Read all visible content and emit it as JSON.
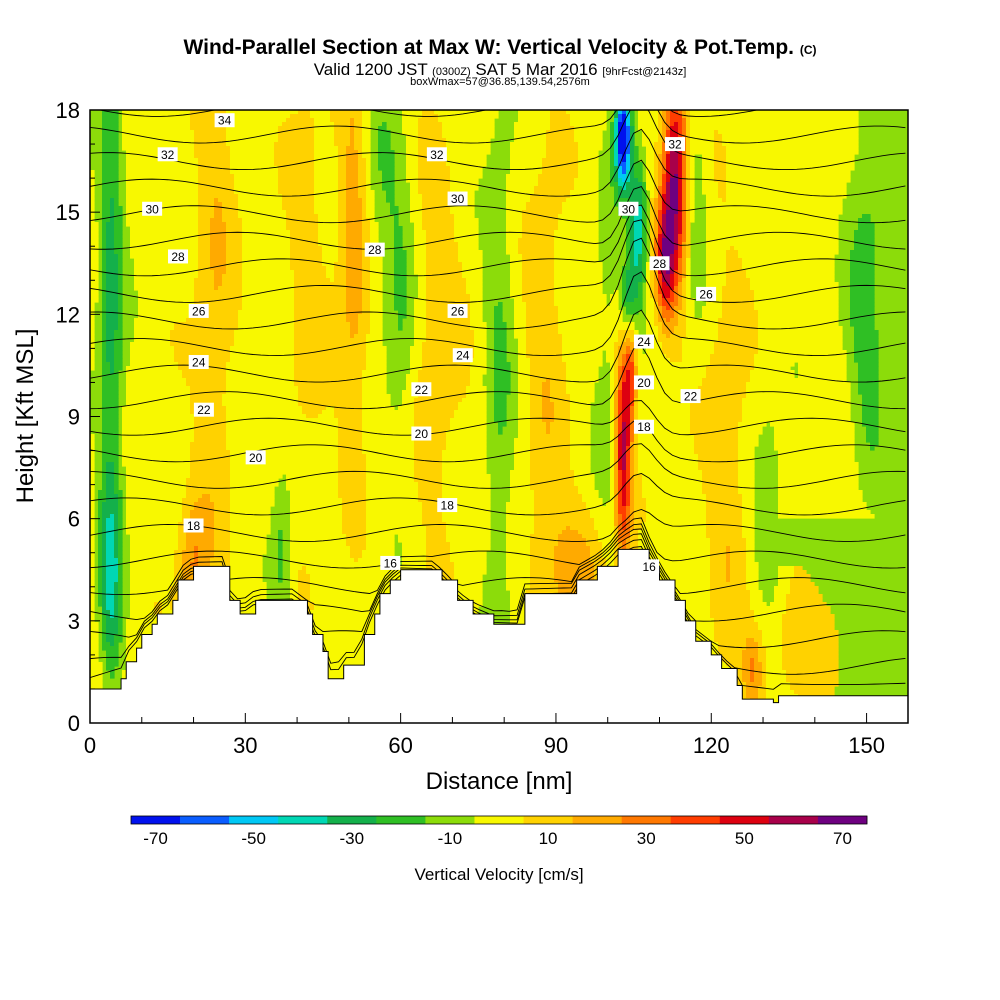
{
  "header": {
    "title_main": "Wind-Parallel Section at Max W: Vertical Velocity & Pot.Temp.",
    "title_mark": "(C)",
    "valid_a": "Valid 1200 JST",
    "valid_b": "(0300Z)",
    "valid_c": "SAT 5 Mar 2016",
    "valid_d": "[9hrFcst@2143z]",
    "box_info": "boxWmax=57@36.85,139.54,2576m"
  },
  "colors": {
    "bins": [
      "#0011ee",
      "#0a5dff",
      "#00c8f5",
      "#00d7b4",
      "#14b04b",
      "#2fbf24",
      "#8cdc0a",
      "#f8f800",
      "#ffd200",
      "#ffaa00",
      "#ff7800",
      "#ff3d00",
      "#dd0010",
      "#a8004a",
      "#6e0080"
    ],
    "background_green": "#8cdc0a",
    "contour_color": "#000000"
  },
  "chart_data": {
    "type": "heatmap",
    "xlabel": "Distance [nm]",
    "ylabel": "Height [Kft MSL]",
    "xlim": [
      0,
      158
    ],
    "ylim": [
      0,
      18
    ],
    "xticks": [
      0,
      30,
      60,
      90,
      120,
      150
    ],
    "yticks": [
      0,
      3,
      6,
      9,
      12,
      15,
      18
    ],
    "colorbar": {
      "label": "Vertical Velocity [cm/s]",
      "tick_labels": [
        "-70",
        "-50",
        "-30",
        "-10",
        "10",
        "30",
        "50",
        "70"
      ],
      "tick_values": [
        -70,
        -50,
        -30,
        -10,
        10,
        30,
        50,
        70
      ],
      "bounds": [
        -75,
        -65,
        -55,
        -45,
        -35,
        -25,
        -15,
        -5,
        5,
        15,
        25,
        35,
        45,
        55,
        65,
        75
      ]
    },
    "terrain_profile": [
      [
        0,
        1.0
      ],
      [
        6,
        1.3
      ],
      [
        7,
        1.8
      ],
      [
        9,
        2.2
      ],
      [
        10,
        2.6
      ],
      [
        12,
        2.9
      ],
      [
        13,
        3.2
      ],
      [
        16,
        3.6
      ],
      [
        17,
        4.2
      ],
      [
        20,
        4.6
      ],
      [
        26,
        4.6
      ],
      [
        27,
        3.6
      ],
      [
        29,
        3.2
      ],
      [
        32,
        3.6
      ],
      [
        39,
        3.6
      ],
      [
        42,
        3.2
      ],
      [
        43,
        2.6
      ],
      [
        45,
        2.1
      ],
      [
        46,
        1.3
      ],
      [
        48,
        1.3
      ],
      [
        49,
        1.7
      ],
      [
        52,
        1.7
      ],
      [
        53,
        2.6
      ],
      [
        55,
        3.2
      ],
      [
        56,
        3.8
      ],
      [
        58,
        4.2
      ],
      [
        60,
        4.5
      ],
      [
        66,
        4.5
      ],
      [
        68,
        4.2
      ],
      [
        71,
        3.6
      ],
      [
        74,
        3.2
      ],
      [
        78,
        2.9
      ],
      [
        83,
        2.9
      ],
      [
        84,
        3.8
      ],
      [
        93,
        3.8
      ],
      [
        94,
        4.2
      ],
      [
        98,
        4.6
      ],
      [
        102,
        5.1
      ],
      [
        107,
        5.1
      ],
      [
        108,
        4.6
      ],
      [
        110,
        4.2
      ],
      [
        113,
        3.6
      ],
      [
        115,
        3.0
      ],
      [
        117,
        2.4
      ],
      [
        120,
        2.0
      ],
      [
        122,
        1.6
      ],
      [
        125,
        1.1
      ],
      [
        126,
        0.7
      ],
      [
        132,
        0.6
      ],
      [
        133,
        0.8
      ],
      [
        148,
        0.8
      ],
      [
        158,
        0.8
      ]
    ],
    "w_features": [
      {
        "x": 4,
        "z": 12,
        "sx": 2.5,
        "sz": 9,
        "w": -28
      },
      {
        "x": 4,
        "z": 4,
        "sx": 2,
        "sz": 3,
        "w": -25
      },
      {
        "x": 24,
        "z": 13,
        "sx": 4,
        "sz": 9,
        "w": 14
      },
      {
        "x": 20,
        "z": 4.5,
        "sx": 3,
        "sz": 2,
        "w": 24
      },
      {
        "x": 42,
        "z": 13,
        "sx": 4,
        "sz": 7,
        "w": 10
      },
      {
        "x": 37,
        "z": 5,
        "sx": 2,
        "sz": 2.5,
        "w": -18
      },
      {
        "x": 51,
        "z": 14,
        "sx": 3,
        "sz": 6,
        "w": 22
      },
      {
        "x": 60,
        "z": 12,
        "sx": 3,
        "sz": 4,
        "w": -16
      },
      {
        "x": 67,
        "z": 11,
        "sx": 5,
        "sz": 6,
        "w": 12
      },
      {
        "x": 56,
        "z": 16,
        "sx": 4,
        "sz": 3,
        "w": -14
      },
      {
        "x": 79,
        "z": 10,
        "sx": 3,
        "sz": 9,
        "w": -15
      },
      {
        "x": 88,
        "z": 11,
        "sx": 4,
        "sz": 7,
        "w": 12
      },
      {
        "x": 93,
        "z": 4.5,
        "sx": 7,
        "sz": 2,
        "w": 18
      },
      {
        "x": 100,
        "z": 11,
        "sx": 3,
        "sz": 6,
        "w": -10
      },
      {
        "x": 103,
        "z": 8,
        "sx": 1.6,
        "sz": 3.3,
        "w": 58
      },
      {
        "x": 104.5,
        "z": 10.5,
        "sx": 1.2,
        "sz": 1.6,
        "w": 35
      },
      {
        "x": 113,
        "z": 16,
        "sx": 2.4,
        "sz": 3.2,
        "w": 66
      },
      {
        "x": 111,
        "z": 13.5,
        "sx": 1.8,
        "sz": 1.8,
        "w": 45
      },
      {
        "x": 103,
        "z": 17.2,
        "sx": 1.6,
        "sz": 1.5,
        "w": -80
      },
      {
        "x": 106,
        "z": 14.5,
        "sx": 1.6,
        "sz": 2,
        "w": -40
      },
      {
        "x": 104,
        "z": 12.3,
        "sx": 1.6,
        "sz": 1.4,
        "w": -35
      },
      {
        "x": 117,
        "z": 15,
        "sx": 2,
        "sz": 3,
        "w": -14
      },
      {
        "x": 123,
        "z": 7.5,
        "sx": 4,
        "sz": 6,
        "w": 14
      },
      {
        "x": 131,
        "z": 6,
        "sx": 3,
        "sz": 3,
        "w": -15
      },
      {
        "x": 136,
        "z": 2.5,
        "sx": 6,
        "sz": 1.8,
        "w": 14
      },
      {
        "x": 128,
        "z": 1.5,
        "sx": 2,
        "sz": 1.2,
        "w": 24
      },
      {
        "x": 150,
        "z": 12,
        "sx": 4,
        "sz": 7,
        "w": -20
      },
      {
        "x": 147,
        "z": 5,
        "sx": 5,
        "sz": 3,
        "w": 8
      }
    ],
    "theta_contour_labels": [
      {
        "text": "34",
        "x": 26,
        "z": 17.7
      },
      {
        "text": "32",
        "x": 15,
        "z": 16.7
      },
      {
        "text": "32",
        "x": 67,
        "z": 16.7
      },
      {
        "text": "32",
        "x": 113,
        "z": 17.0
      },
      {
        "text": "30",
        "x": 12,
        "z": 15.1
      },
      {
        "text": "30",
        "x": 71,
        "z": 15.4
      },
      {
        "text": "30",
        "x": 104,
        "z": 15.1
      },
      {
        "text": "28",
        "x": 17,
        "z": 13.7
      },
      {
        "text": "28",
        "x": 55,
        "z": 13.9
      },
      {
        "text": "28",
        "x": 110,
        "z": 13.5
      },
      {
        "text": "26",
        "x": 21,
        "z": 12.1
      },
      {
        "text": "26",
        "x": 71,
        "z": 12.1
      },
      {
        "text": "26",
        "x": 119,
        "z": 12.6
      },
      {
        "text": "24",
        "x": 21,
        "z": 10.6
      },
      {
        "text": "24",
        "x": 72,
        "z": 10.8
      },
      {
        "text": "24",
        "x": 107,
        "z": 11.2
      },
      {
        "text": "22",
        "x": 22,
        "z": 9.2
      },
      {
        "text": "22",
        "x": 64,
        "z": 9.8
      },
      {
        "text": "22",
        "x": 116,
        "z": 9.6
      },
      {
        "text": "20",
        "x": 32,
        "z": 7.8
      },
      {
        "text": "20",
        "x": 64,
        "z": 8.5
      },
      {
        "text": "20",
        "x": 107,
        "z": 10.0
      },
      {
        "text": "18",
        "x": 20,
        "z": 5.8
      },
      {
        "text": "18",
        "x": 69,
        "z": 6.4
      },
      {
        "text": "18",
        "x": 107,
        "z": 8.7
      },
      {
        "text": "16",
        "x": 58,
        "z": 4.7
      },
      {
        "text": "16",
        "x": 108,
        "z": 4.6
      }
    ]
  }
}
